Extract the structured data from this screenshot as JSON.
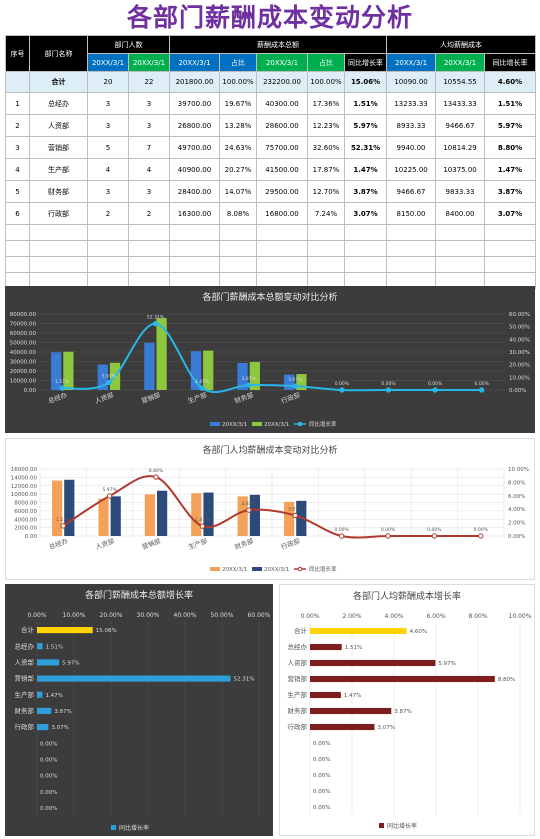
{
  "title": "各部门薪酬成本变动分析",
  "table": {
    "headers": {
      "no": "序号",
      "dept": "部门名称",
      "count": "部门人数",
      "total": "薪酬成本总额",
      "avg": "人均薪酬成本"
    },
    "sub": {
      "d1": "20XX/3/1",
      "d2": "20XX/3/1",
      "ratio": "占比",
      "growth": "同比增长率"
    },
    "total_row": {
      "name": "合计",
      "c1": "20",
      "c2": "22",
      "t1": "201800.00",
      "r1": "100.00%",
      "t2": "232200.00",
      "r2": "100.00%",
      "g": "15.06%",
      "a1": "10090.00",
      "a2": "10554.55",
      "ag": "4.60%"
    },
    "rows": [
      {
        "no": "1",
        "name": "总经办",
        "c1": "3",
        "c2": "3",
        "t1": "39700.00",
        "r1": "19.67%",
        "t2": "40300.00",
        "r2": "17.36%",
        "g": "1.51%",
        "a1": "13233.33",
        "a2": "13433.33",
        "ag": "1.51%"
      },
      {
        "no": "2",
        "name": "人资部",
        "c1": "3",
        "c2": "3",
        "t1": "26800.00",
        "r1": "13.28%",
        "t2": "28600.00",
        "r2": "12.23%",
        "g": "5.97%",
        "a1": "8933.33",
        "a2": "9466.67",
        "ag": "5.97%"
      },
      {
        "no": "3",
        "name": "营销部",
        "c1": "5",
        "c2": "7",
        "t1": "49700.00",
        "r1": "24.63%",
        "t2": "75700.00",
        "r2": "32.60%",
        "g": "52.31%",
        "a1": "9940.00",
        "a2": "10814.29",
        "ag": "8.80%"
      },
      {
        "no": "4",
        "name": "生产部",
        "c1": "4",
        "c2": "4",
        "t1": "40900.00",
        "r1": "20.27%",
        "t2": "41500.00",
        "r2": "17.87%",
        "g": "1.47%",
        "a1": "10225.00",
        "a2": "10375.00",
        "ag": "1.47%"
      },
      {
        "no": "5",
        "name": "财务部",
        "c1": "3",
        "c2": "3",
        "t1": "28400.00",
        "r1": "14.07%",
        "t2": "29500.00",
        "r2": "12.70%",
        "g": "3.87%",
        "a1": "9466.67",
        "a2": "9833.33",
        "ag": "3.87%"
      },
      {
        "no": "6",
        "name": "行政部",
        "c1": "2",
        "c2": "2",
        "t1": "16300.00",
        "r1": "8.08%",
        "t2": "16800.00",
        "r2": "7.24%",
        "g": "3.07%",
        "a1": "8150.00",
        "a2": "8400.00",
        "ag": "3.07%"
      }
    ]
  },
  "chart_data": [
    {
      "type": "bar",
      "title": "各部门薪酬成本总额变动对比分析",
      "categories": [
        "总经办",
        "人资部",
        "营销部",
        "生产部",
        "财务部",
        "行政部",
        "",
        "",
        "",
        ""
      ],
      "series": [
        {
          "name": "20XX/3/1",
          "values": [
            39700,
            26800,
            49700,
            40900,
            28400,
            16300,
            0,
            0,
            0,
            0
          ],
          "color": "#3a7bd5"
        },
        {
          "name": "20XX/3/1",
          "values": [
            40300,
            28600,
            75700,
            41500,
            29500,
            16800,
            0,
            0,
            0,
            0
          ],
          "color": "#8dc63f"
        }
      ],
      "line": {
        "name": "同比增长率",
        "values": [
          1.51,
          5.97,
          52.31,
          1.47,
          3.87,
          3.07,
          0,
          0,
          0,
          0
        ],
        "labels": [
          "1.51%",
          "5.97%",
          "52.31%",
          "1.47%",
          "3.87%",
          "3.07%",
          "0.00%",
          "0.00%",
          "0.00%",
          "0.00%"
        ],
        "color": "#29b6e8"
      },
      "y_ticks": [
        "80000.00",
        "70000.00",
        "60000.00",
        "50000.00",
        "40000.00",
        "30000.00",
        "20000.00",
        "10000.00",
        "0.00"
      ],
      "y2_ticks": [
        "60.00%",
        "50.00%",
        "40.00%",
        "30.00%",
        "20.00%",
        "10.00%",
        "0.00%"
      ],
      "ylim": [
        0,
        80000
      ],
      "y2lim": [
        0,
        60
      ]
    },
    {
      "type": "bar",
      "title": "各部门人均薪酬成本变动对比分析",
      "categories": [
        "总经办",
        "人资部",
        "营销部",
        "生产部",
        "财务部",
        "行政部",
        "",
        "",
        "",
        ""
      ],
      "series": [
        {
          "name": "20XX/3/1",
          "values": [
            13233.33,
            8933.33,
            9940,
            10225,
            9466.67,
            8150,
            0,
            0,
            0,
            0
          ],
          "color": "#f4a259"
        },
        {
          "name": "20XX/3/1",
          "values": [
            13433.33,
            9466.67,
            10814.29,
            10375,
            9833.33,
            8400,
            0,
            0,
            0,
            0
          ],
          "color": "#2e4a7a"
        }
      ],
      "line": {
        "name": "同比增长率",
        "values": [
          1.51,
          5.97,
          8.8,
          1.47,
          3.87,
          3.07,
          0,
          0,
          0,
          0
        ],
        "labels": [
          "1.51%",
          "5.97%",
          "8.80%",
          "1.47%",
          "3.87%",
          "3.07%",
          "0.00%",
          "0.00%",
          "0.00%",
          "0.00%"
        ],
        "color": "#b03a2e"
      },
      "y_ticks": [
        "16000.00",
        "14000.00",
        "12000.00",
        "10000.00",
        "8000.00",
        "6000.00",
        "4000.00",
        "2000.00",
        "0.00"
      ],
      "y2_ticks": [
        "10.00%",
        "8.00%",
        "6.00%",
        "4.00%",
        "2.00%",
        "0.00%"
      ],
      "ylim": [
        0,
        16000
      ],
      "y2lim": [
        0,
        10
      ]
    },
    {
      "type": "bar",
      "title": "各部门薪酬成本总额增长率",
      "categories": [
        "合计",
        "总经办",
        "人资部",
        "营销部",
        "生产部",
        "财务部",
        "行政部",
        "",
        "",
        "",
        "",
        ""
      ],
      "values": [
        15.06,
        1.51,
        5.97,
        52.31,
        1.47,
        3.87,
        3.07,
        0,
        0,
        0,
        0,
        0
      ],
      "labels": [
        "15.06%",
        "1.51%",
        "5.97%",
        "52.31%",
        "1.47%",
        "3.87%",
        "3.07%",
        "0.00%",
        "0.00%",
        "0.00%",
        "0.00%",
        "0.00%"
      ],
      "x_ticks": [
        "0.00%",
        "10.00%",
        "20.00%",
        "30.00%",
        "40.00%",
        "50.00%",
        "60.00%"
      ],
      "xlim": [
        0,
        60
      ],
      "legend": "同比增长率"
    },
    {
      "type": "bar",
      "title": "各部门人均薪酬成本增长率",
      "categories": [
        "合计",
        "总经办",
        "人资部",
        "营销部",
        "生产部",
        "财务部",
        "行政部",
        "",
        "",
        "",
        "",
        ""
      ],
      "values": [
        4.6,
        1.51,
        5.97,
        8.8,
        1.47,
        3.87,
        3.07,
        0,
        0,
        0,
        0,
        0
      ],
      "labels": [
        "4.60%",
        "1.51%",
        "5.97%",
        "8.80%",
        "1.47%",
        "3.87%",
        "3.07%",
        "0.00%",
        "0.00%",
        "0.00%",
        "0.00%",
        "0.00%"
      ],
      "x_ticks": [
        "0.00%",
        "2.00%",
        "4.00%",
        "6.00%",
        "8.00%",
        "10.00%"
      ],
      "xlim": [
        0,
        10
      ],
      "legend": "同比增长率"
    }
  ]
}
